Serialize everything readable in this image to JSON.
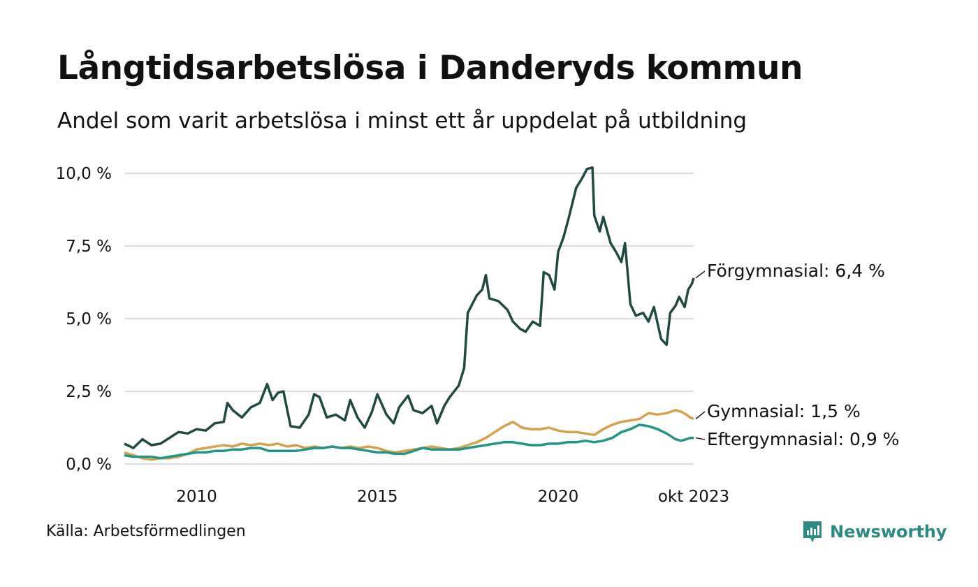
{
  "title": "Långtidsarbetslösa i Danderyds kommun",
  "subtitle": "Andel som varit arbetslösa i minst ett år uppdelat på utbildning",
  "source": "Källa: Arbetsförmedlingen",
  "brand": {
    "name": "Newsworthy",
    "icon": "newsworthy-logo-icon",
    "color": "#2b8a84"
  },
  "chart_data": {
    "type": "line",
    "title": "Långtidsarbetslösa i Danderyds kommun",
    "xlabel": "",
    "ylabel": "",
    "x_range": [
      2008.0,
      2023.75
    ],
    "ylim": [
      0,
      10
    ],
    "y_ticks": [
      {
        "value": 0,
        "label": "0,0 %"
      },
      {
        "value": 2.5,
        "label": "2,5 %"
      },
      {
        "value": 5,
        "label": "5,0 %"
      },
      {
        "value": 7.5,
        "label": "7,5 %"
      },
      {
        "value": 10,
        "label": "10,0 %"
      }
    ],
    "x_ticks": [
      {
        "value": 2010,
        "label": "2010"
      },
      {
        "value": 2015,
        "label": "2015"
      },
      {
        "value": 2020,
        "label": "2020"
      },
      {
        "value": 2023.75,
        "label": "okt 2023"
      }
    ],
    "grid": true,
    "series": [
      {
        "name": "Förgymnasial",
        "end_label": "Förgymnasial: 6,4 %",
        "color": "#1f4a43",
        "points": [
          [
            2008.0,
            0.7
          ],
          [
            2008.25,
            0.55
          ],
          [
            2008.5,
            0.85
          ],
          [
            2008.75,
            0.65
          ],
          [
            2009.0,
            0.7
          ],
          [
            2009.25,
            0.9
          ],
          [
            2009.5,
            1.1
          ],
          [
            2009.75,
            1.05
          ],
          [
            2010.0,
            1.2
          ],
          [
            2010.25,
            1.15
          ],
          [
            2010.5,
            1.4
          ],
          [
            2010.75,
            1.45
          ],
          [
            2010.85,
            2.1
          ],
          [
            2011.0,
            1.85
          ],
          [
            2011.25,
            1.6
          ],
          [
            2011.5,
            1.95
          ],
          [
            2011.75,
            2.1
          ],
          [
            2011.95,
            2.75
          ],
          [
            2012.1,
            2.2
          ],
          [
            2012.25,
            2.45
          ],
          [
            2012.4,
            2.5
          ],
          [
            2012.6,
            1.3
          ],
          [
            2012.85,
            1.25
          ],
          [
            2013.1,
            1.7
          ],
          [
            2013.25,
            2.4
          ],
          [
            2013.4,
            2.3
          ],
          [
            2013.6,
            1.6
          ],
          [
            2013.85,
            1.7
          ],
          [
            2014.1,
            1.5
          ],
          [
            2014.25,
            2.2
          ],
          [
            2014.45,
            1.6
          ],
          [
            2014.65,
            1.25
          ],
          [
            2014.85,
            1.8
          ],
          [
            2015.0,
            2.4
          ],
          [
            2015.25,
            1.7
          ],
          [
            2015.45,
            1.4
          ],
          [
            2015.6,
            1.95
          ],
          [
            2015.85,
            2.35
          ],
          [
            2016.0,
            1.85
          ],
          [
            2016.25,
            1.75
          ],
          [
            2016.5,
            2.0
          ],
          [
            2016.65,
            1.4
          ],
          [
            2016.85,
            2.0
          ],
          [
            2017.0,
            2.3
          ],
          [
            2017.25,
            2.7
          ],
          [
            2017.4,
            3.3
          ],
          [
            2017.5,
            5.2
          ],
          [
            2017.75,
            5.8
          ],
          [
            2017.9,
            6.0
          ],
          [
            2018.0,
            6.5
          ],
          [
            2018.1,
            5.7
          ],
          [
            2018.35,
            5.6
          ],
          [
            2018.6,
            5.3
          ],
          [
            2018.75,
            4.9
          ],
          [
            2018.95,
            4.65
          ],
          [
            2019.1,
            4.55
          ],
          [
            2019.3,
            4.9
          ],
          [
            2019.5,
            4.75
          ],
          [
            2019.6,
            6.6
          ],
          [
            2019.75,
            6.5
          ],
          [
            2019.9,
            6.0
          ],
          [
            2020.0,
            7.3
          ],
          [
            2020.15,
            7.8
          ],
          [
            2020.3,
            8.5
          ],
          [
            2020.5,
            9.5
          ],
          [
            2020.65,
            9.8
          ],
          [
            2020.8,
            10.15
          ],
          [
            2020.95,
            10.2
          ],
          [
            2021.0,
            8.55
          ],
          [
            2021.15,
            8.0
          ],
          [
            2021.25,
            8.5
          ],
          [
            2021.45,
            7.6
          ],
          [
            2021.6,
            7.3
          ],
          [
            2021.75,
            6.95
          ],
          [
            2021.85,
            7.6
          ],
          [
            2022.0,
            5.5
          ],
          [
            2022.15,
            5.1
          ],
          [
            2022.35,
            5.2
          ],
          [
            2022.5,
            4.9
          ],
          [
            2022.65,
            5.4
          ],
          [
            2022.85,
            4.3
          ],
          [
            2023.0,
            4.1
          ],
          [
            2023.1,
            5.2
          ],
          [
            2023.25,
            5.45
          ],
          [
            2023.35,
            5.75
          ],
          [
            2023.5,
            5.4
          ],
          [
            2023.6,
            6.0
          ],
          [
            2023.7,
            6.2
          ],
          [
            2023.75,
            6.4
          ]
        ]
      },
      {
        "name": "Gymnasial",
        "end_label": "Gymnasial: 1,5 %",
        "color": "#d4a24c",
        "points": [
          [
            2008.0,
            0.4
          ],
          [
            2008.25,
            0.3
          ],
          [
            2008.5,
            0.2
          ],
          [
            2008.75,
            0.15
          ],
          [
            2009.0,
            0.2
          ],
          [
            2009.25,
            0.2
          ],
          [
            2009.5,
            0.25
          ],
          [
            2009.75,
            0.35
          ],
          [
            2010.0,
            0.5
          ],
          [
            2010.25,
            0.55
          ],
          [
            2010.5,
            0.6
          ],
          [
            2010.75,
            0.65
          ],
          [
            2011.0,
            0.6
          ],
          [
            2011.25,
            0.7
          ],
          [
            2011.5,
            0.65
          ],
          [
            2011.75,
            0.7
          ],
          [
            2012.0,
            0.65
          ],
          [
            2012.25,
            0.7
          ],
          [
            2012.5,
            0.6
          ],
          [
            2012.75,
            0.65
          ],
          [
            2013.0,
            0.55
          ],
          [
            2013.25,
            0.6
          ],
          [
            2013.5,
            0.55
          ],
          [
            2013.75,
            0.6
          ],
          [
            2014.0,
            0.55
          ],
          [
            2014.25,
            0.6
          ],
          [
            2014.5,
            0.55
          ],
          [
            2014.75,
            0.6
          ],
          [
            2015.0,
            0.55
          ],
          [
            2015.25,
            0.45
          ],
          [
            2015.5,
            0.4
          ],
          [
            2015.75,
            0.45
          ],
          [
            2016.0,
            0.5
          ],
          [
            2016.25,
            0.55
          ],
          [
            2016.5,
            0.6
          ],
          [
            2016.75,
            0.55
          ],
          [
            2017.0,
            0.5
          ],
          [
            2017.25,
            0.55
          ],
          [
            2017.5,
            0.65
          ],
          [
            2017.75,
            0.75
          ],
          [
            2018.0,
            0.9
          ],
          [
            2018.25,
            1.1
          ],
          [
            2018.5,
            1.3
          ],
          [
            2018.75,
            1.45
          ],
          [
            2019.0,
            1.25
          ],
          [
            2019.25,
            1.2
          ],
          [
            2019.5,
            1.2
          ],
          [
            2019.75,
            1.25
          ],
          [
            2020.0,
            1.15
          ],
          [
            2020.25,
            1.1
          ],
          [
            2020.5,
            1.1
          ],
          [
            2020.75,
            1.05
          ],
          [
            2021.0,
            1.0
          ],
          [
            2021.25,
            1.2
          ],
          [
            2021.5,
            1.35
          ],
          [
            2021.75,
            1.45
          ],
          [
            2022.0,
            1.5
          ],
          [
            2022.25,
            1.55
          ],
          [
            2022.5,
            1.75
          ],
          [
            2022.75,
            1.7
          ],
          [
            2023.0,
            1.75
          ],
          [
            2023.25,
            1.85
          ],
          [
            2023.4,
            1.8
          ],
          [
            2023.55,
            1.7
          ],
          [
            2023.65,
            1.6
          ],
          [
            2023.75,
            1.55
          ]
        ]
      },
      {
        "name": "Eftergymnasial",
        "end_label": "Eftergymnasial: 0,9 %",
        "color": "#1f9688",
        "points": [
          [
            2008.0,
            0.3
          ],
          [
            2008.25,
            0.25
          ],
          [
            2008.5,
            0.25
          ],
          [
            2008.75,
            0.25
          ],
          [
            2009.0,
            0.2
          ],
          [
            2009.25,
            0.25
          ],
          [
            2009.5,
            0.3
          ],
          [
            2009.75,
            0.35
          ],
          [
            2010.0,
            0.4
          ],
          [
            2010.25,
            0.4
          ],
          [
            2010.5,
            0.45
          ],
          [
            2010.75,
            0.45
          ],
          [
            2011.0,
            0.5
          ],
          [
            2011.25,
            0.5
          ],
          [
            2011.5,
            0.55
          ],
          [
            2011.75,
            0.55
          ],
          [
            2012.0,
            0.45
          ],
          [
            2012.25,
            0.45
          ],
          [
            2012.5,
            0.45
          ],
          [
            2012.75,
            0.45
          ],
          [
            2013.0,
            0.5
          ],
          [
            2013.25,
            0.55
          ],
          [
            2013.5,
            0.55
          ],
          [
            2013.75,
            0.6
          ],
          [
            2014.0,
            0.55
          ],
          [
            2014.25,
            0.55
          ],
          [
            2014.5,
            0.5
          ],
          [
            2014.75,
            0.45
          ],
          [
            2015.0,
            0.4
          ],
          [
            2015.25,
            0.4
          ],
          [
            2015.5,
            0.35
          ],
          [
            2015.75,
            0.35
          ],
          [
            2016.0,
            0.45
          ],
          [
            2016.25,
            0.55
          ],
          [
            2016.5,
            0.5
          ],
          [
            2016.75,
            0.5
          ],
          [
            2017.0,
            0.5
          ],
          [
            2017.25,
            0.5
          ],
          [
            2017.5,
            0.55
          ],
          [
            2017.75,
            0.6
          ],
          [
            2018.0,
            0.65
          ],
          [
            2018.25,
            0.7
          ],
          [
            2018.5,
            0.75
          ],
          [
            2018.75,
            0.75
          ],
          [
            2019.0,
            0.7
          ],
          [
            2019.25,
            0.65
          ],
          [
            2019.5,
            0.65
          ],
          [
            2019.75,
            0.7
          ],
          [
            2020.0,
            0.7
          ],
          [
            2020.25,
            0.75
          ],
          [
            2020.5,
            0.75
          ],
          [
            2020.75,
            0.8
          ],
          [
            2021.0,
            0.75
          ],
          [
            2021.25,
            0.8
          ],
          [
            2021.5,
            0.9
          ],
          [
            2021.75,
            1.1
          ],
          [
            2022.0,
            1.2
          ],
          [
            2022.25,
            1.35
          ],
          [
            2022.5,
            1.3
          ],
          [
            2022.75,
            1.2
          ],
          [
            2023.0,
            1.05
          ],
          [
            2023.25,
            0.85
          ],
          [
            2023.4,
            0.8
          ],
          [
            2023.55,
            0.85
          ],
          [
            2023.65,
            0.9
          ],
          [
            2023.75,
            0.9
          ]
        ]
      }
    ]
  }
}
